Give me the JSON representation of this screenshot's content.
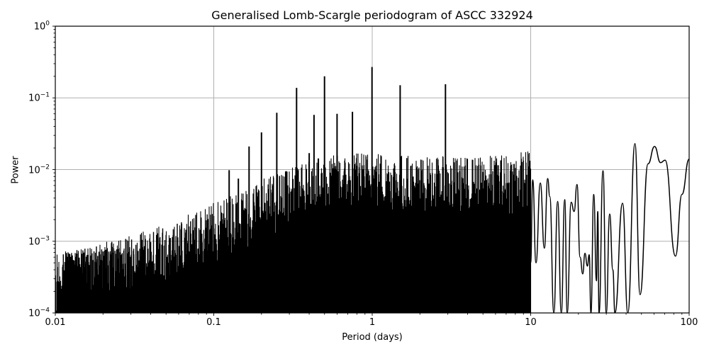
{
  "chart_data": {
    "type": "line",
    "title": "Generalised Lomb-Scargle periodogram of ASCC 332924",
    "xlabel": "Period (days)",
    "ylabel": "Power",
    "xscale": "log",
    "yscale": "log",
    "xlim": [
      0.01,
      100
    ],
    "ylim": [
      0.0001,
      1
    ],
    "grid": true,
    "legend": null,
    "x_tick_labels": [
      "0.01",
      "0.1",
      "1",
      "10",
      "100"
    ],
    "x_ticks": [
      0.01,
      0.1,
      1,
      10,
      100
    ],
    "y_tick_labels": [
      {
        "base": "10",
        "exp": "-4"
      },
      {
        "base": "10",
        "exp": "-3"
      },
      {
        "base": "10",
        "exp": "-2"
      },
      {
        "base": "10",
        "exp": "-1"
      },
      {
        "base": "10",
        "exp": "0"
      }
    ],
    "y_ticks": [
      0.0001,
      0.001,
      0.01,
      0.1,
      1
    ],
    "line_color": "#000000",
    "grid_color": "#b0b0b0",
    "major_peaks": [
      {
        "period": 0.125,
        "power": 0.0098
      },
      {
        "period": 0.143,
        "power": 0.0075
      },
      {
        "period": 0.167,
        "power": 0.021
      },
      {
        "period": 0.2,
        "power": 0.033
      },
      {
        "period": 0.25,
        "power": 0.062
      },
      {
        "period": 0.286,
        "power": 0.0095
      },
      {
        "period": 0.333,
        "power": 0.138
      },
      {
        "period": 0.4,
        "power": 0.017
      },
      {
        "period": 0.429,
        "power": 0.058
      },
      {
        "period": 0.5,
        "power": 0.2
      },
      {
        "period": 0.6,
        "power": 0.06
      },
      {
        "period": 0.667,
        "power": 0.0095
      },
      {
        "period": 0.75,
        "power": 0.064
      },
      {
        "period": 0.997,
        "power": 0.27
      },
      {
        "period": 1.5,
        "power": 0.15
      },
      {
        "period": 2.9,
        "power": 0.155
      }
    ],
    "noise_floor_envelope": [
      {
        "period": 0.01,
        "power": 0.00018
      },
      {
        "period": 0.02,
        "power": 0.00025
      },
      {
        "period": 0.05,
        "power": 0.00045
      },
      {
        "period": 0.1,
        "power": 0.0009
      },
      {
        "period": 0.2,
        "power": 0.002
      },
      {
        "period": 0.5,
        "power": 0.004
      },
      {
        "period": 1.0,
        "power": 0.005
      },
      {
        "period": 2.0,
        "power": 0.004
      },
      {
        "period": 5.0,
        "power": 0.004
      },
      {
        "period": 10.0,
        "power": 0.005
      }
    ],
    "long_period_curve": [
      {
        "period": 10.0,
        "power": 0.0005
      },
      {
        "period": 10.3,
        "power": 0.0072
      },
      {
        "period": 10.8,
        "power": 0.0005
      },
      {
        "period": 11.5,
        "power": 0.0065
      },
      {
        "period": 12.2,
        "power": 0.0008
      },
      {
        "period": 12.8,
        "power": 0.0075
      },
      {
        "period": 13.2,
        "power": 0.0042
      },
      {
        "period": 14.0,
        "power": 0.0001
      },
      {
        "period": 14.8,
        "power": 0.0036
      },
      {
        "period": 15.6,
        "power": 0.0001
      },
      {
        "period": 16.4,
        "power": 0.0038
      },
      {
        "period": 17.0,
        "power": 0.0001
      },
      {
        "period": 18.0,
        "power": 0.0035
      },
      {
        "period": 18.8,
        "power": 0.0026
      },
      {
        "period": 19.6,
        "power": 0.0062
      },
      {
        "period": 20.5,
        "power": 0.0006
      },
      {
        "period": 21.3,
        "power": 0.00035
      },
      {
        "period": 22.0,
        "power": 0.00068
      },
      {
        "period": 22.8,
        "power": 0.00045
      },
      {
        "period": 23.4,
        "power": 0.00065
      },
      {
        "period": 24.0,
        "power": 0.0001
      },
      {
        "period": 25.0,
        "power": 0.0045
      },
      {
        "period": 26.0,
        "power": 0.00028
      },
      {
        "period": 26.5,
        "power": 0.0026
      },
      {
        "period": 27.0,
        "power": 0.0001
      },
      {
        "period": 28.6,
        "power": 0.0096
      },
      {
        "period": 30.0,
        "power": 0.0001
      },
      {
        "period": 31.5,
        "power": 0.0024
      },
      {
        "period": 33.0,
        "power": 0.0004
      },
      {
        "period": 34.0,
        "power": 0.0001
      },
      {
        "period": 38.0,
        "power": 0.0034
      },
      {
        "period": 41.0,
        "power": 0.0001
      },
      {
        "period": 45.5,
        "power": 0.023
      },
      {
        "period": 49.0,
        "power": 0.00018
      },
      {
        "period": 55.0,
        "power": 0.012
      },
      {
        "period": 60.5,
        "power": 0.021
      },
      {
        "period": 66.0,
        "power": 0.0125
      },
      {
        "period": 70.5,
        "power": 0.0135
      },
      {
        "period": 82.0,
        "power": 0.00062
      },
      {
        "period": 90.0,
        "power": 0.0045
      },
      {
        "period": 100.0,
        "power": 0.014
      }
    ]
  },
  "figure": {
    "title": "Generalised Lomb-Scargle periodogram of ASCC 332924",
    "xlabel": "Period (days)",
    "ylabel": "Power"
  }
}
